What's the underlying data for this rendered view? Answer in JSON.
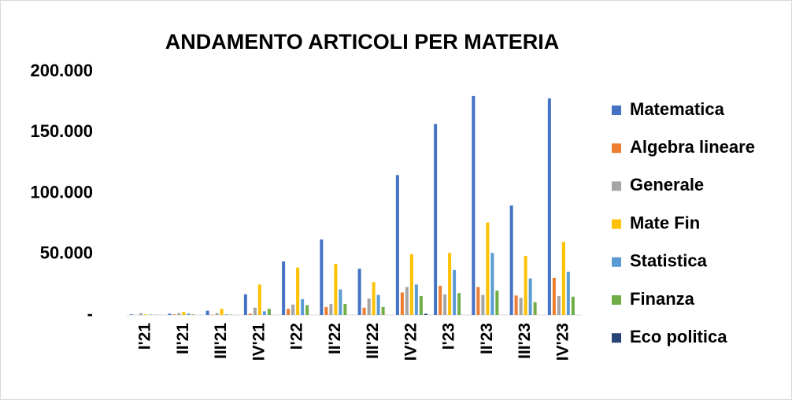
{
  "chart_data": {
    "type": "bar",
    "title": "ANDAMENTO ARTICOLI PER MATERIA",
    "categories": [
      "I'21",
      "II'21",
      "III'21",
      "IV'21",
      "I'22",
      "II'22",
      "III'22",
      "IV'22",
      "I'23",
      "II'23",
      "III'23",
      "IV'23"
    ],
    "series": [
      {
        "name": "Matematica",
        "color": "#4472c4",
        "values": [
          500,
          1000,
          3500,
          17000,
          44000,
          62000,
          38000,
          115000,
          157000,
          180000,
          90000,
          178000
        ]
      },
      {
        "name": "Algebra lineare",
        "color": "#ed7d31",
        "values": [
          0,
          500,
          300,
          1000,
          5000,
          6500,
          6000,
          18500,
          24000,
          23000,
          16000,
          30500
        ]
      },
      {
        "name": "Generale",
        "color": "#a5a5a5",
        "values": [
          1500,
          1500,
          1500,
          6000,
          8500,
          9000,
          13500,
          23000,
          17000,
          16500,
          14000,
          15500
        ]
      },
      {
        "name": "Mate Fin",
        "color": "#ffc000",
        "values": [
          500,
          2500,
          5000,
          25000,
          39000,
          42000,
          27000,
          50000,
          51000,
          76000,
          48500,
          60000
        ]
      },
      {
        "name": "Statistica",
        "color": "#5b9bd5",
        "values": [
          300,
          1200,
          500,
          3000,
          13000,
          21000,
          16500,
          25000,
          37000,
          51000,
          30000,
          35500
        ]
      },
      {
        "name": "Finanza",
        "color": "#70ad47",
        "values": [
          200,
          500,
          300,
          5000,
          8000,
          9000,
          6500,
          15500,
          18000,
          20000,
          10500,
          15000
        ]
      },
      {
        "name": "Eco politica",
        "color": "#264478",
        "values": [
          0,
          0,
          0,
          0,
          0,
          0,
          0,
          1000,
          0,
          0,
          0,
          0
        ]
      }
    ],
    "ylim": [
      0,
      200000
    ],
    "yticks": [
      {
        "value": 0,
        "label": "-"
      },
      {
        "value": 50000,
        "label": "50.000"
      },
      {
        "value": 100000,
        "label": "100.000"
      },
      {
        "value": 150000,
        "label": "150.000"
      },
      {
        "value": 200000,
        "label": "200.000"
      }
    ],
    "grid": false,
    "legend": "right"
  }
}
